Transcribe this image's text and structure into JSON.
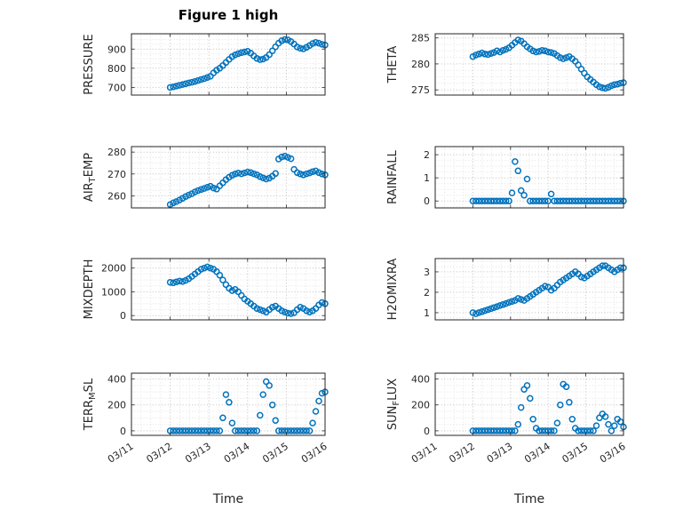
{
  "style": {
    "marker_color": "#0072BD",
    "axis_color": "#262626",
    "grid_color": "#c0c0c0",
    "minor_grid_color": "#e2e2e2",
    "background": "#ffffff"
  },
  "chart_data": {
    "type": "scatter",
    "title": "Figure 1 high",
    "xlabel": "Time",
    "marker": "o",
    "x_ticks": [
      0,
      1,
      2,
      3,
      4,
      5
    ],
    "x_tick_labels": [
      "03/11",
      "03/12",
      "03/13",
      "03/14",
      "03/15",
      "03/16"
    ],
    "xlim": [
      0,
      5
    ],
    "x": [
      1,
      1.08,
      1.16,
      1.24,
      1.32,
      1.4,
      1.48,
      1.56,
      1.64,
      1.72,
      1.8,
      1.88,
      1.96,
      2.04,
      2.12,
      2.2,
      2.28,
      2.36,
      2.44,
      2.52,
      2.6,
      2.68,
      2.76,
      2.84,
      2.92,
      3,
      3.08,
      3.16,
      3.24,
      3.32,
      3.4,
      3.48,
      3.56,
      3.64,
      3.72,
      3.8,
      3.88,
      3.96,
      4.04,
      4.12,
      4.2,
      4.28,
      4.36,
      4.44,
      4.52,
      4.6,
      4.68,
      4.76,
      4.84,
      4.92,
      5
    ],
    "subplots": [
      {
        "name": "PRESSURE",
        "label_parts": [
          [
            "PRESSURE",
            false
          ]
        ],
        "yticks": [
          700,
          800,
          900
        ],
        "ylim": [
          660,
          980
        ],
        "values": [
          700,
          703,
          707,
          711,
          715,
          719,
          723,
          727,
          731,
          736,
          741,
          746,
          752,
          758,
          776,
          790,
          800,
          814,
          830,
          846,
          861,
          870,
          876,
          881,
          885,
          888,
          879,
          864,
          851,
          845,
          848,
          856,
          871,
          891,
          912,
          931,
          944,
          950,
          948,
          939,
          926,
          911,
          904,
          901,
          909,
          919,
          929,
          935,
          931,
          925,
          921
        ]
      },
      {
        "name": "THETA",
        "label_parts": [
          [
            "THETA",
            false
          ]
        ],
        "yticks": [
          275,
          280,
          285
        ],
        "ylim": [
          274,
          285.8
        ],
        "values": [
          281.4,
          281.7,
          281.9,
          282.1,
          281.9,
          281.8,
          282,
          282.2,
          282.5,
          282.3,
          282.6,
          282.8,
          283.1,
          283.6,
          284.1,
          284.6,
          284.4,
          283.9,
          283.3,
          282.9,
          282.5,
          282.3,
          282.4,
          282.6,
          282.5,
          282.3,
          282.2,
          282,
          281.6,
          281.2,
          281,
          281.2,
          281.4,
          281,
          280.5,
          279.8,
          279,
          278.2,
          277.5,
          277,
          276.5,
          276,
          275.6,
          275.4,
          275.3,
          275.5,
          275.8,
          276,
          276.1,
          276.3,
          276.4
        ]
      },
      {
        "name": "AIR_TEMP",
        "label_parts": [
          [
            "AIR",
            false
          ],
          [
            "T",
            true
          ],
          [
            "EMP",
            false
          ]
        ],
        "yticks": [
          260,
          270,
          280
        ],
        "ylim": [
          254.5,
          282.5
        ],
        "values": [
          256,
          256.8,
          257.4,
          258.1,
          258.9,
          259.7,
          260.4,
          261,
          261.8,
          262.4,
          262.9,
          263.4,
          263.9,
          264.4,
          263.6,
          263.1,
          264.6,
          266,
          267.4,
          268.5,
          269.4,
          270,
          270.4,
          270.1,
          270.5,
          270.9,
          270.6,
          270.1,
          269.6,
          268.8,
          268.2,
          267.7,
          268.1,
          269,
          270.2,
          276.8,
          277.8,
          278.1,
          277.6,
          277,
          272.1,
          270.6,
          270,
          269.6,
          270.1,
          270.5,
          271,
          271.4,
          270.6,
          270,
          269.6
        ]
      },
      {
        "name": "RAINFALL",
        "label_parts": [
          [
            "RAINFALL",
            false
          ]
        ],
        "yticks": [
          0,
          1,
          2
        ],
        "ylim": [
          -0.3,
          2.35
        ],
        "values": [
          0,
          0,
          0,
          0,
          0,
          0,
          0,
          0,
          0,
          0,
          0,
          0,
          0,
          0.35,
          1.7,
          1.3,
          0.45,
          0.25,
          0.95,
          0,
          0,
          0,
          0,
          0,
          0,
          0,
          0.3,
          0,
          0,
          0,
          0,
          0,
          0,
          0,
          0,
          0,
          0,
          0,
          0,
          0,
          0,
          0,
          0,
          0,
          0,
          0,
          0,
          0,
          0,
          0,
          0
        ]
      },
      {
        "name": "MIXDEPTH",
        "label_parts": [
          [
            "MIXDEPTH",
            false
          ]
        ],
        "yticks": [
          0,
          1000,
          2000
        ],
        "ylim": [
          -180,
          2400
        ],
        "values": [
          1400,
          1380,
          1420,
          1450,
          1430,
          1480,
          1550,
          1650,
          1750,
          1850,
          1950,
          2000,
          2050,
          2000,
          1950,
          1850,
          1700,
          1500,
          1300,
          1150,
          1050,
          1100,
          1000,
          850,
          700,
          600,
          500,
          400,
          300,
          250,
          200,
          150,
          250,
          350,
          400,
          300,
          200,
          150,
          100,
          80,
          120,
          250,
          350,
          300,
          200,
          150,
          200,
          300,
          450,
          550,
          500
        ]
      },
      {
        "name": "H2OMIXRA",
        "label_parts": [
          [
            "H2OMIXRA",
            false
          ]
        ],
        "yticks": [
          1,
          2,
          3
        ],
        "ylim": [
          0.65,
          3.65
        ],
        "values": [
          1,
          0.95,
          1,
          1.05,
          1.1,
          1.15,
          1.2,
          1.25,
          1.3,
          1.35,
          1.4,
          1.45,
          1.5,
          1.55,
          1.6,
          1.7,
          1.65,
          1.6,
          1.7,
          1.8,
          1.9,
          2,
          2.1,
          2.2,
          2.3,
          2.25,
          2.1,
          2.2,
          2.35,
          2.5,
          2.6,
          2.7,
          2.8,
          2.9,
          3,
          2.9,
          2.75,
          2.7,
          2.8,
          2.9,
          3,
          3.1,
          3.2,
          3.3,
          3.3,
          3.2,
          3.1,
          3,
          3.1,
          3.2,
          3.2
        ]
      },
      {
        "name": "TERR_MSL",
        "label_parts": [
          [
            "TERR",
            false
          ],
          [
            "M",
            true
          ],
          [
            "SL",
            false
          ]
        ],
        "yticks": [
          0,
          200,
          400
        ],
        "ylim": [
          -35,
          445
        ],
        "values": [
          0,
          0,
          0,
          0,
          0,
          0,
          0,
          0,
          0,
          0,
          0,
          0,
          0,
          0,
          0,
          0,
          0,
          100,
          280,
          220,
          60,
          0,
          0,
          0,
          0,
          0,
          0,
          0,
          0,
          120,
          280,
          380,
          350,
          200,
          80,
          0,
          0,
          0,
          0,
          0,
          0,
          0,
          0,
          0,
          0,
          0,
          60,
          150,
          230,
          290,
          300
        ]
      },
      {
        "name": "SUN_FLUX",
        "label_parts": [
          [
            "SUN",
            false
          ],
          [
            "F",
            true
          ],
          [
            "LUX",
            false
          ]
        ],
        "yticks": [
          0,
          200,
          400
        ],
        "ylim": [
          -35,
          445
        ],
        "values": [
          0,
          0,
          0,
          0,
          0,
          0,
          0,
          0,
          0,
          0,
          0,
          0,
          0,
          0,
          0,
          50,
          180,
          320,
          350,
          250,
          90,
          20,
          0,
          0,
          0,
          0,
          0,
          0,
          60,
          200,
          360,
          340,
          220,
          90,
          20,
          0,
          0,
          0,
          0,
          0,
          0,
          40,
          100,
          130,
          110,
          50,
          0,
          40,
          90,
          70,
          30
        ]
      }
    ]
  }
}
